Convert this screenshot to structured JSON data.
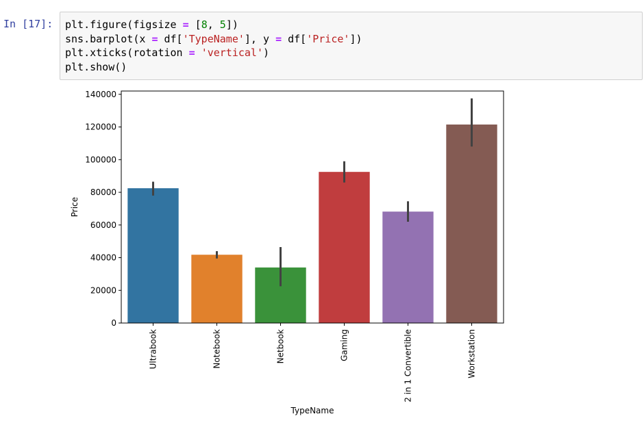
{
  "cell": {
    "prompt": "In [17]:",
    "code_lines": [
      [
        {
          "t": "plt.figure(figsize ",
          "c": "plain"
        },
        {
          "t": "=",
          "c": "op"
        },
        {
          "t": " [",
          "c": "plain"
        },
        {
          "t": "8",
          "c": "num"
        },
        {
          "t": ", ",
          "c": "plain"
        },
        {
          "t": "5",
          "c": "num"
        },
        {
          "t": "])",
          "c": "plain"
        }
      ],
      [
        {
          "t": "sns.barplot(x ",
          "c": "plain"
        },
        {
          "t": "=",
          "c": "op"
        },
        {
          "t": " df[",
          "c": "plain"
        },
        {
          "t": "'TypeName'",
          "c": "str"
        },
        {
          "t": "], y ",
          "c": "plain"
        },
        {
          "t": "=",
          "c": "op"
        },
        {
          "t": " df[",
          "c": "plain"
        },
        {
          "t": "'Price'",
          "c": "str"
        },
        {
          "t": "])",
          "c": "plain"
        }
      ],
      [
        {
          "t": "plt.xticks(rotation ",
          "c": "plain"
        },
        {
          "t": "=",
          "c": "op"
        },
        {
          "t": " ",
          "c": "plain"
        },
        {
          "t": "'vertical'",
          "c": "str"
        },
        {
          "t": ")",
          "c": "plain"
        }
      ],
      [
        {
          "t": "plt.show()",
          "c": "plain"
        }
      ]
    ]
  },
  "chart_data": {
    "type": "bar",
    "title": "",
    "xlabel": "TypeName",
    "ylabel": "Price",
    "ylim": [
      0,
      142000
    ],
    "yticks": [
      0,
      20000,
      40000,
      60000,
      80000,
      100000,
      120000,
      140000
    ],
    "categories": [
      "Ultrabook",
      "Notebook",
      "Netbook",
      "Gaming",
      "2 in 1 Convertible",
      "Workstation"
    ],
    "values": [
      82500,
      41800,
      34000,
      92500,
      68200,
      121500
    ],
    "error_low": [
      78000,
      39500,
      22500,
      86000,
      62000,
      108000
    ],
    "error_high": [
      86500,
      44000,
      46500,
      99000,
      74500,
      137500
    ],
    "colors": [
      "#3274a1",
      "#e1812c",
      "#3a923a",
      "#c03d3e",
      "#9372b2",
      "#845b53"
    ],
    "error_color": "#424242",
    "grid": false,
    "legend": "none"
  }
}
